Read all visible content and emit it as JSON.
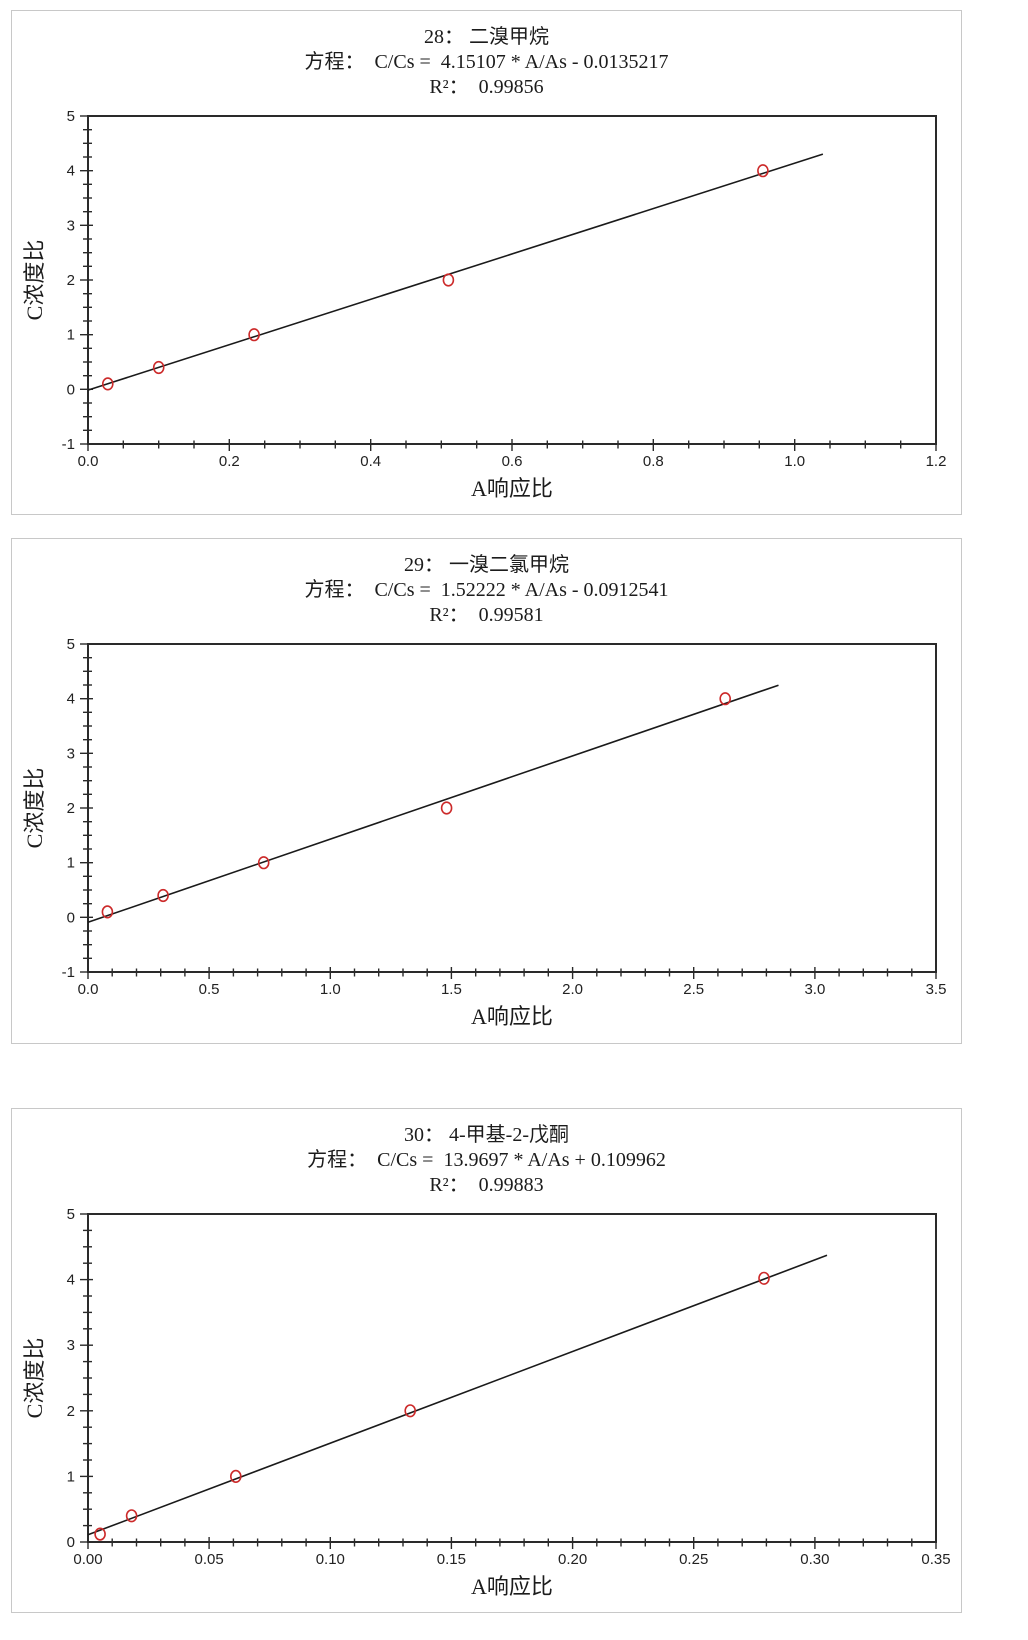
{
  "page": {
    "background": "#ffffff",
    "border_color": "#c8c8c8",
    "text_color": "#1c1c1c"
  },
  "panels": [
    {
      "title": "28： 二溴甲烷",
      "equation_line": "方程：  C/Cs =  4.15107 * A/As - 0.0135217",
      "r2_line": "R²：  0.99856"
    },
    {
      "title": "29： 一溴二氯甲烷",
      "equation_line": "方程：  C/Cs =  1.52222 * A/As - 0.0912541",
      "r2_line": "R²：  0.99581"
    },
    {
      "title": "30： 4-甲基-2-戊酮",
      "equation_line": "方程：  C/Cs =  13.9697 * A/As + 0.109962",
      "r2_line": "R²：  0.99883"
    }
  ],
  "chart_data": [
    {
      "type": "scatter",
      "title": "28： 二溴甲烷",
      "equation": "C/Cs = 4.15107 * A/As - 0.0135217",
      "slope": 4.15107,
      "intercept": -0.0135217,
      "r_squared": 0.99856,
      "xlabel": "A响应比",
      "ylabel": "C浓度比",
      "xlim": [
        0,
        1.2
      ],
      "ylim": [
        -1,
        5
      ],
      "xticks": [
        0,
        0.2,
        0.4,
        0.6,
        0.8,
        1.0,
        1.2
      ],
      "xtick_decimals": 1,
      "x_minor_step": 0.05,
      "yticks": [
        -1,
        0,
        1,
        2,
        3,
        4,
        5
      ],
      "y_minor_step": 0.25,
      "grid": false,
      "legend": null,
      "points": {
        "x": [
          0.028,
          0.1,
          0.235,
          0.51,
          0.955
        ],
        "y": [
          0.1,
          0.4,
          1.0,
          2.0,
          4.0
        ]
      },
      "fit_line_x": [
        0,
        1.04
      ],
      "point_color": "#cc2a2a",
      "line_color": "#1a1a1a",
      "axis_color": "#2a2a2a"
    },
    {
      "type": "scatter",
      "title": "29： 一溴二氯甲烷",
      "equation": "C/Cs = 1.52222 * A/As - 0.0912541",
      "slope": 1.52222,
      "intercept": -0.0912541,
      "r_squared": 0.99581,
      "xlabel": "A响应比",
      "ylabel": "C浓度比",
      "xlim": [
        0,
        3.5
      ],
      "ylim": [
        -1,
        5
      ],
      "xticks": [
        0,
        0.5,
        1.0,
        1.5,
        2.0,
        2.5,
        3.0,
        3.5
      ],
      "xtick_decimals": 1,
      "x_minor_step": 0.1,
      "yticks": [
        -1,
        0,
        1,
        2,
        3,
        4,
        5
      ],
      "y_minor_step": 0.25,
      "grid": false,
      "legend": null,
      "points": {
        "x": [
          0.08,
          0.31,
          0.725,
          1.48,
          2.63
        ],
        "y": [
          0.1,
          0.4,
          1.0,
          2.0,
          4.0
        ]
      },
      "fit_line_x": [
        0,
        2.85
      ],
      "point_color": "#cc2a2a",
      "line_color": "#1a1a1a",
      "axis_color": "#2a2a2a"
    },
    {
      "type": "scatter",
      "title": "30： 4-甲基-2-戊酮",
      "equation": "C/Cs = 13.9697 * A/As + 0.109962",
      "slope": 13.9697,
      "intercept": 0.109962,
      "r_squared": 0.99883,
      "xlabel": "A响应比",
      "ylabel": "C浓度比",
      "xlim": [
        0,
        0.35
      ],
      "ylim": [
        0,
        5
      ],
      "xticks": [
        0,
        0.05,
        0.1,
        0.15,
        0.2,
        0.25,
        0.3,
        0.35
      ],
      "xtick_decimals": 2,
      "x_minor_step": 0.01,
      "yticks": [
        0,
        1,
        2,
        3,
        4,
        5
      ],
      "y_minor_step": 0.25,
      "grid": false,
      "legend": null,
      "points": {
        "x": [
          0.005,
          0.018,
          0.061,
          0.133,
          0.279
        ],
        "y": [
          0.12,
          0.4,
          1.0,
          2.0,
          4.02
        ]
      },
      "fit_line_x": [
        0,
        0.305
      ],
      "point_color": "#cc2a2a",
      "line_color": "#1a1a1a",
      "axis_color": "#2a2a2a"
    }
  ]
}
